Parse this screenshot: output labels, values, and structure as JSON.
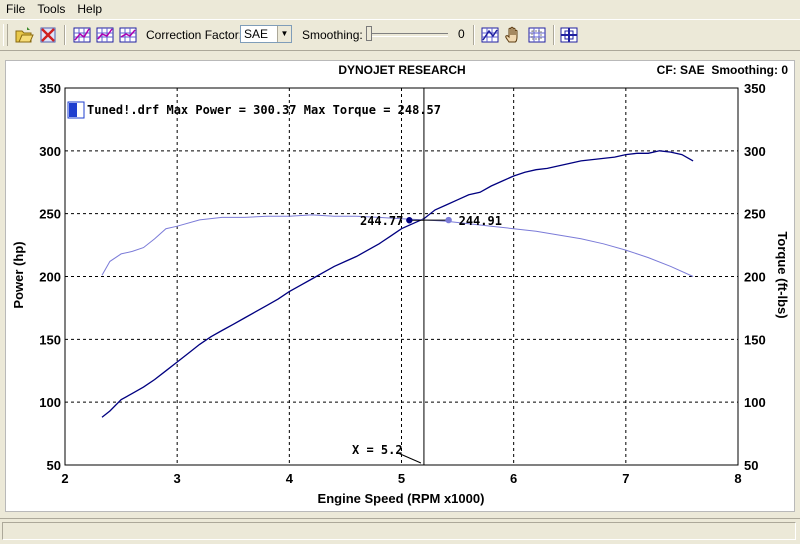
{
  "menu": [
    "File",
    "Tools",
    "Help"
  ],
  "toolbar": {
    "correction_label": "Correction Factor:",
    "correction_value": "SAE",
    "smoothing_label": "Smoothing:",
    "smoothing_value": "0",
    "smoothing_level": 0
  },
  "icons": {
    "open": "open-folder-icon",
    "delete": "delete-run-icon",
    "grid1": "graph-grid-icon",
    "grid2": "graph-grid-2-icon",
    "grid3": "graph-grid-3-icon",
    "grid4": "graph-grid-4-icon",
    "hand": "hand-pan-icon",
    "grid5": "graph-grid-5-icon",
    "cursor": "cursor-crosshair-icon"
  },
  "header": {
    "title": "DYNOJET RESEARCH",
    "right": "CF: SAE  Smoothing: 0"
  },
  "chart_data": {
    "type": "line",
    "xlabel": "Engine Speed (RPM x1000)",
    "ylabel_left": "Power (hp)",
    "ylabel_right": "Torque (ft-lbs)",
    "xlim": [
      2,
      8
    ],
    "ylim": [
      50,
      350
    ],
    "x_ticks": [
      "2",
      "3",
      "4",
      "5",
      "6",
      "7",
      "8"
    ],
    "y_ticks": [
      "50",
      "100",
      "150",
      "200",
      "250",
      "300",
      "350"
    ],
    "grid": true,
    "legend_position": "top-left",
    "legend_text": "Tuned!.drf Max Power = 300.37 Max Torque = 248.57",
    "colors": {
      "power": "#000080",
      "torque": "#7b7bd8",
      "legend": "#1f3fcf"
    },
    "series": [
      {
        "id": "power",
        "x": [
          2.33,
          2.4,
          2.5,
          2.6,
          2.7,
          2.8,
          2.9,
          3.0,
          3.1,
          3.2,
          3.3,
          3.4,
          3.5,
          3.6,
          3.7,
          3.8,
          3.9,
          4.0,
          4.1,
          4.2,
          4.3,
          4.4,
          4.5,
          4.6,
          4.7,
          4.8,
          4.9,
          5.0,
          5.1,
          5.2,
          5.3,
          5.4,
          5.5,
          5.6,
          5.7,
          5.8,
          5.9,
          6.0,
          6.1,
          6.2,
          6.3,
          6.4,
          6.5,
          6.6,
          6.7,
          6.8,
          6.9,
          7.0,
          7.1,
          7.2,
          7.3,
          7.4,
          7.5,
          7.6
        ],
        "values": [
          88,
          93,
          102,
          107,
          112,
          118,
          125,
          132,
          139,
          146,
          152,
          157,
          162,
          167,
          172,
          177,
          182,
          188,
          193,
          198,
          203,
          208,
          212,
          216,
          221,
          226,
          232,
          238,
          242,
          246,
          253,
          257,
          261,
          265,
          267,
          272,
          276,
          280,
          283,
          285,
          286,
          288,
          290,
          292,
          293,
          294,
          295,
          297,
          298,
          298,
          300,
          299,
          297,
          292
        ]
      },
      {
        "id": "torque",
        "x": [
          2.33,
          2.4,
          2.5,
          2.6,
          2.7,
          2.8,
          2.9,
          3.0,
          3.2,
          3.4,
          3.6,
          3.8,
          4.0,
          4.2,
          4.4,
          4.6,
          4.8,
          5.0,
          5.2,
          5.4,
          5.6,
          5.8,
          6.0,
          6.2,
          6.4,
          6.6,
          6.8,
          7.0,
          7.2,
          7.4,
          7.6
        ],
        "values": [
          201,
          212,
          218,
          220,
          223,
          230,
          238,
          240,
          245,
          247,
          247,
          248,
          248,
          249,
          248,
          248,
          247,
          246,
          245,
          244,
          242,
          240,
          238,
          236,
          233,
          230,
          226,
          221,
          215,
          208,
          200
        ]
      }
    ],
    "cursor": {
      "x": 5.2,
      "label": "X = 5.2"
    },
    "annotations": [
      {
        "text": "244.77",
        "x": 5.07,
        "y": 244.77,
        "series": "power"
      },
      {
        "text": "244.91",
        "x": 5.42,
        "y": 244.91,
        "series": "torque"
      }
    ]
  }
}
